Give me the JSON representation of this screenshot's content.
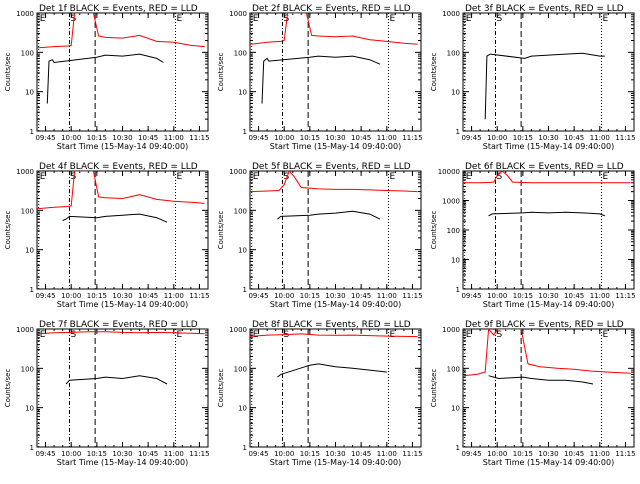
{
  "chart_data": [
    {
      "type": "line",
      "title": "Det 1f BLACK = Events, RED = LLD",
      "xlabel": "Start Time (15-May-14 09:40:00)",
      "ylabel": "Counts/sec",
      "yscale": "log",
      "ylim": [
        1,
        1000
      ],
      "xlim": [
        "09:40",
        "11:20"
      ],
      "x_ticks": [
        "09:45",
        "10:00",
        "10:15",
        "10:30",
        "10:45",
        "11:00",
        "11:15"
      ],
      "y_ticks": [
        "1",
        "10",
        "100",
        "1000"
      ],
      "markers": [
        {
          "label": "E",
          "time": "09:41",
          "style": "dotted"
        },
        {
          "label": "S",
          "time": "09:59",
          "style": "dashdot"
        },
        {
          "label": "",
          "time": "10:14",
          "style": "dashed"
        },
        {
          "label": "E",
          "time": "11:01",
          "style": "dotted"
        }
      ],
      "series": [
        {
          "name": "LLD",
          "color": "#ff0000",
          "x": [
            "09:40",
            "09:50",
            "09:58",
            "10:00",
            "10:02",
            "10:05",
            "10:10",
            "10:13",
            "10:16",
            "10:20",
            "10:30",
            "10:40",
            "10:50",
            "11:00",
            "11:10",
            "11:18"
          ],
          "y": [
            130,
            140,
            145,
            150,
            1000,
            1000,
            1000,
            1000,
            260,
            240,
            230,
            270,
            190,
            180,
            150,
            140
          ]
        },
        {
          "name": "Events",
          "color": "#000000",
          "x": [
            "09:46",
            "09:47",
            "09:49",
            "09:50",
            "10:15",
            "10:20",
            "10:30",
            "10:40",
            "10:50",
            "10:54"
          ],
          "y": [
            5,
            60,
            65,
            55,
            75,
            85,
            80,
            90,
            70,
            55
          ]
        }
      ]
    },
    {
      "type": "line",
      "title": "Det 2f BLACK = Events, RED = LLD",
      "xlabel": "Start Time (15-May-14 09:40:00)",
      "ylabel": "Counts/sec",
      "yscale": "log",
      "ylim": [
        1,
        1000
      ],
      "xlim": [
        "09:40",
        "11:20"
      ],
      "x_ticks": [
        "09:45",
        "10:00",
        "10:15",
        "10:30",
        "10:45",
        "11:00",
        "11:15"
      ],
      "y_ticks": [
        "1",
        "10",
        "100",
        "1000"
      ],
      "markers": [
        {
          "label": "E",
          "time": "09:41",
          "style": "dotted"
        },
        {
          "label": "S",
          "time": "09:59",
          "style": "dashdot"
        },
        {
          "label": "",
          "time": "10:14",
          "style": "dashed"
        },
        {
          "label": "E",
          "time": "11:01",
          "style": "dotted"
        }
      ],
      "series": [
        {
          "name": "LLD",
          "color": "#ff0000",
          "x": [
            "09:40",
            "09:50",
            "09:58",
            "10:00",
            "10:02",
            "10:05",
            "10:10",
            "10:13",
            "10:16",
            "10:20",
            "10:30",
            "10:40",
            "10:50",
            "11:00",
            "11:10",
            "11:18"
          ],
          "y": [
            160,
            180,
            190,
            200,
            1000,
            1000,
            1000,
            1000,
            270,
            260,
            250,
            260,
            210,
            190,
            170,
            160
          ]
        },
        {
          "name": "Events",
          "color": "#000000",
          "x": [
            "09:47",
            "09:48",
            "09:50",
            "09:51",
            "10:15",
            "10:20",
            "10:30",
            "10:40",
            "10:50",
            "10:56"
          ],
          "y": [
            5,
            60,
            70,
            60,
            75,
            80,
            75,
            80,
            65,
            50
          ]
        }
      ]
    },
    {
      "type": "line",
      "title": "Det 3f BLACK = Events, RED = LLD",
      "xlabel": "Start Time (15-May-14 09:40:00)",
      "ylabel": "Counts/sec",
      "yscale": "log",
      "ylim": [
        1,
        1000
      ],
      "xlim": [
        "09:40",
        "11:20"
      ],
      "x_ticks": [
        "09:45",
        "10:00",
        "10:15",
        "10:30",
        "10:45",
        "11:00",
        "11:15"
      ],
      "y_ticks": [
        "1",
        "10",
        "100",
        "1000"
      ],
      "markers": [
        {
          "label": "E",
          "time": "09:41",
          "style": "dotted"
        },
        {
          "label": "S",
          "time": "09:59",
          "style": "dashdot"
        },
        {
          "label": "",
          "time": "10:14",
          "style": "dashed"
        },
        {
          "label": "E",
          "time": "11:01",
          "style": "dotted"
        }
      ],
      "series": [
        {
          "name": "Events",
          "color": "#000000",
          "x": [
            "09:53",
            "09:54",
            "09:56",
            "10:16",
            "10:20",
            "10:30",
            "10:40",
            "10:50",
            "11:00",
            "11:03"
          ],
          "y": [
            2,
            80,
            90,
            70,
            80,
            85,
            90,
            95,
            80,
            80
          ]
        }
      ]
    },
    {
      "type": "line",
      "title": "Det 4f BLACK = Events, RED = LLD",
      "xlabel": "Start Time (15-May-14 09:40:00)",
      "ylabel": "Counts/sec",
      "yscale": "log",
      "ylim": [
        1,
        1000
      ],
      "xlim": [
        "09:40",
        "11:20"
      ],
      "x_ticks": [
        "09:45",
        "10:00",
        "10:15",
        "10:30",
        "10:45",
        "11:00",
        "11:15"
      ],
      "y_ticks": [
        "1",
        "10",
        "100",
        "1000"
      ],
      "markers": [
        {
          "label": "E",
          "time": "09:41",
          "style": "dotted"
        },
        {
          "label": "S",
          "time": "09:59",
          "style": "dashdot"
        },
        {
          "label": "",
          "time": "10:14",
          "style": "dashed"
        },
        {
          "label": "E",
          "time": "11:01",
          "style": "dotted"
        }
      ],
      "series": [
        {
          "name": "LLD",
          "color": "#ff0000",
          "x": [
            "09:40",
            "09:50",
            "09:58",
            "10:00",
            "10:02",
            "10:05",
            "10:10",
            "10:13",
            "10:16",
            "10:20",
            "10:30",
            "10:40",
            "10:50",
            "11:00",
            "11:10",
            "11:18"
          ],
          "y": [
            110,
            120,
            125,
            130,
            1000,
            1000,
            1000,
            1000,
            220,
            210,
            200,
            250,
            190,
            170,
            160,
            150
          ]
        },
        {
          "name": "Events",
          "color": "#000000",
          "x": [
            "09:55",
            "09:57",
            "09:59",
            "10:15",
            "10:20",
            "10:30",
            "10:40",
            "10:50",
            "10:56"
          ],
          "y": [
            55,
            60,
            70,
            65,
            70,
            75,
            80,
            65,
            50
          ]
        }
      ]
    },
    {
      "type": "line",
      "title": "Det 5f BLACK = Events, RED = LLD",
      "xlabel": "Start Time (15-May-14 09:40:00)",
      "ylabel": "Counts/sec",
      "yscale": "log",
      "ylim": [
        1,
        1000
      ],
      "xlim": [
        "09:40",
        "11:20"
      ],
      "x_ticks": [
        "09:45",
        "10:00",
        "10:15",
        "10:30",
        "10:45",
        "11:00",
        "11:15"
      ],
      "y_ticks": [
        "1",
        "10",
        "100",
        "1000"
      ],
      "markers": [
        {
          "label": "E",
          "time": "09:41",
          "style": "dotted"
        },
        {
          "label": "S",
          "time": "09:59",
          "style": "dashdot"
        },
        {
          "label": "",
          "time": "10:14",
          "style": "dashed"
        },
        {
          "label": "E",
          "time": "11:01",
          "style": "dotted"
        }
      ],
      "series": [
        {
          "name": "LLD",
          "color": "#ff0000",
          "x": [
            "09:40",
            "09:50",
            "09:57",
            "10:00",
            "10:03",
            "10:06",
            "10:10",
            "10:20",
            "10:30",
            "10:40",
            "10:50",
            "11:00",
            "11:10",
            "11:18"
          ],
          "y": [
            300,
            310,
            320,
            450,
            1000,
            700,
            380,
            350,
            340,
            340,
            330,
            320,
            310,
            300
          ]
        },
        {
          "name": "Events",
          "color": "#000000",
          "x": [
            "09:56",
            "09:58",
            "10:15",
            "10:20",
            "10:30",
            "10:40",
            "10:50",
            "10:56"
          ],
          "y": [
            60,
            70,
            75,
            80,
            85,
            95,
            80,
            60
          ]
        }
      ]
    },
    {
      "type": "line",
      "title": "Det 6f BLACK = Events, RED = LLD",
      "xlabel": "Start Time (15-May-14 09:40:00)",
      "ylabel": "Counts/sec",
      "yscale": "log",
      "ylim": [
        1,
        10000
      ],
      "xlim": [
        "09:40",
        "11:20"
      ],
      "x_ticks": [
        "09:45",
        "10:00",
        "10:15",
        "10:30",
        "10:45",
        "11:00",
        "11:15"
      ],
      "y_ticks": [
        "1",
        "10",
        "100",
        "1000",
        "10000"
      ],
      "markers": [
        {
          "label": "E",
          "time": "09:41",
          "style": "dotted"
        },
        {
          "label": "S",
          "time": "09:59",
          "style": "dashdot"
        },
        {
          "label": "",
          "time": "10:14",
          "style": "dashed"
        },
        {
          "label": "E",
          "time": "11:01",
          "style": "dotted"
        }
      ],
      "series": [
        {
          "name": "LLD",
          "color": "#ff0000",
          "x": [
            "09:40",
            "09:50",
            "09:56",
            "09:58",
            "10:00",
            "10:03",
            "10:06",
            "10:09",
            "10:20",
            "10:40",
            "11:00",
            "11:18"
          ],
          "y": [
            4000,
            4000,
            4100,
            4200,
            7000,
            10000,
            7000,
            4200,
            4000,
            4000,
            4000,
            4000
          ]
        },
        {
          "name": "Events",
          "color": "#000000",
          "x": [
            "09:55",
            "09:57",
            "10:15",
            "10:20",
            "10:30",
            "10:40",
            "10:50",
            "11:00",
            "11:03"
          ],
          "y": [
            300,
            350,
            380,
            400,
            380,
            400,
            380,
            350,
            300
          ]
        }
      ]
    },
    {
      "type": "line",
      "title": "Det 7f BLACK = Events, RED = LLD",
      "xlabel": "Start Time (15-May-14 09:40:00)",
      "ylabel": "Counts/sec",
      "yscale": "log",
      "ylim": [
        1,
        1000
      ],
      "xlim": [
        "09:40",
        "11:20"
      ],
      "x_ticks": [
        "09:45",
        "10:00",
        "10:15",
        "10:30",
        "10:45",
        "11:00",
        "11:15"
      ],
      "y_ticks": [
        "1",
        "10",
        "100",
        "1000"
      ],
      "markers": [
        {
          "label": "E",
          "time": "09:41",
          "style": "dotted"
        },
        {
          "label": "S",
          "time": "09:59",
          "style": "dashdot"
        },
        {
          "label": "",
          "time": "10:14",
          "style": "dashed"
        },
        {
          "label": "E",
          "time": "11:01",
          "style": "dotted"
        }
      ],
      "series": [
        {
          "name": "LLD",
          "color": "#ff0000",
          "x": [
            "09:40",
            "09:50",
            "10:00",
            "10:10",
            "10:20",
            "10:30",
            "10:40",
            "10:50",
            "11:00",
            "11:10",
            "11:18"
          ],
          "y": [
            750,
            800,
            820,
            850,
            850,
            820,
            800,
            820,
            800,
            780,
            760
          ]
        },
        {
          "name": "Events",
          "color": "#000000",
          "x": [
            "09:57",
            "09:59",
            "10:15",
            "10:20",
            "10:30",
            "10:40",
            "10:50",
            "10:56"
          ],
          "y": [
            40,
            50,
            55,
            60,
            55,
            65,
            55,
            40
          ]
        }
      ]
    },
    {
      "type": "line",
      "title": "Det 8f BLACK = Events, RED = LLD",
      "xlabel": "Start Time (15-May-14 09:40:00)",
      "ylabel": "Counts/sec",
      "yscale": "log",
      "ylim": [
        1,
        1000
      ],
      "xlim": [
        "09:40",
        "11:20"
      ],
      "x_ticks": [
        "09:45",
        "10:00",
        "10:15",
        "10:30",
        "10:45",
        "11:00",
        "11:15"
      ],
      "y_ticks": [
        "1",
        "10",
        "100",
        "1000"
      ],
      "markers": [
        {
          "label": "E",
          "time": "09:41",
          "style": "dotted"
        },
        {
          "label": "S",
          "time": "09:59",
          "style": "dashdot"
        },
        {
          "label": "",
          "time": "10:14",
          "style": "dashed"
        },
        {
          "label": "E",
          "time": "11:01",
          "style": "dotted"
        }
      ],
      "series": [
        {
          "name": "LLD",
          "color": "#ff0000",
          "x": [
            "09:40",
            "09:50",
            "10:00",
            "10:10",
            "10:20",
            "10:30",
            "10:40",
            "10:50",
            "11:00",
            "11:10",
            "11:18"
          ],
          "y": [
            650,
            700,
            720,
            750,
            700,
            690,
            700,
            680,
            660,
            650,
            640
          ]
        },
        {
          "name": "Events",
          "color": "#000000",
          "x": [
            "09:56",
            "09:58",
            "10:15",
            "10:20",
            "10:30",
            "10:40",
            "10:50",
            "11:00"
          ],
          "y": [
            60,
            70,
            120,
            130,
            110,
            100,
            90,
            80
          ]
        }
      ]
    },
    {
      "type": "line",
      "title": "Det 9f BLACK = Events, RED = LLD",
      "xlabel": "Start Time (15-May-14 09:40:00)",
      "ylabel": "Counts/sec",
      "yscale": "log",
      "ylim": [
        1,
        1000
      ],
      "xlim": [
        "09:40",
        "11:20"
      ],
      "x_ticks": [
        "09:45",
        "10:00",
        "10:15",
        "10:30",
        "10:45",
        "11:00",
        "11:15"
      ],
      "y_ticks": [
        "1",
        "10",
        "100",
        "1000"
      ],
      "markers": [
        {
          "label": "E",
          "time": "09:41",
          "style": "dotted"
        },
        {
          "label": "S",
          "time": "09:59",
          "style": "dashdot"
        },
        {
          "label": "",
          "time": "10:14",
          "style": "dashed"
        },
        {
          "label": "E",
          "time": "11:01",
          "style": "dotted"
        }
      ],
      "series": [
        {
          "name": "LLD",
          "color": "#ff0000",
          "x": [
            "09:40",
            "09:48",
            "09:53",
            "09:55",
            "09:58",
            "10:00",
            "10:05",
            "10:10",
            "10:14",
            "10:18",
            "10:25",
            "10:35",
            "10:45",
            "10:55",
            "11:05",
            "11:18"
          ],
          "y": [
            65,
            70,
            80,
            1000,
            700,
            1000,
            1000,
            1000,
            1000,
            130,
            110,
            100,
            95,
            85,
            80,
            75
          ]
        },
        {
          "name": "Events",
          "color": "#000000",
          "x": [
            "09:55",
            "09:58",
            "10:01",
            "10:15",
            "10:20",
            "10:30",
            "10:40",
            "10:50",
            "10:56"
          ],
          "y": [
            65,
            60,
            55,
            60,
            55,
            50,
            50,
            45,
            40
          ]
        }
      ]
    }
  ]
}
